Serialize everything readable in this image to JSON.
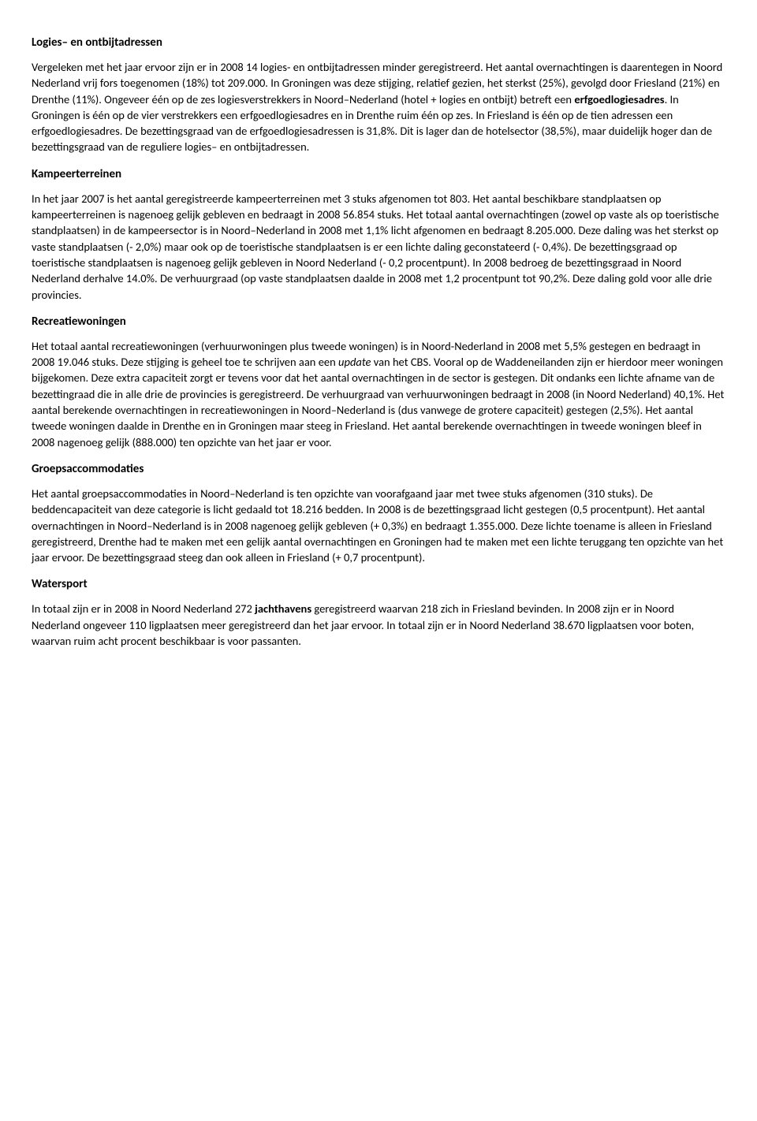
{
  "sections": {
    "logies": {
      "heading": "Logies– en ontbijtadressen",
      "body_html": "Vergeleken met het jaar ervoor zijn er in 2008 14 logies- en ontbijtadressen minder geregistreerd. Het aantal overnachtingen is daarentegen in Noord Nederland vrij fors toegenomen (18%) tot 209.000. In Groningen was deze stijging, relatief gezien, het sterkst (25%), gevolgd door Friesland (21%) en Drenthe (11%). Ongeveer één op de zes logiesverstrekkers in Noord–Nederland (hotel + logies en ontbijt) betreft een <strong>erfgoedlogiesadres</strong>. In Groningen is één op de vier verstrekkers een erfgoedlogiesadres en in Drenthe ruim één op zes. In Friesland is één op de tien adressen een erfgoedlogiesadres. De bezettingsgraad van de erfgoedlogiesadressen is 31,8%. Dit is lager dan de hotelsector (38,5%), maar duidelijk hoger dan de bezettingsgraad van de reguliere logies– en ontbijtadressen."
    },
    "kampeer": {
      "heading": "Kampeerterreinen",
      "body_html": "In het jaar 2007 is het aantal geregistreerde kampeerterreinen met 3 stuks afgenomen tot 803. Het aantal beschikbare standplaatsen op kampeerterreinen is nagenoeg gelijk gebleven en bedraagt in 2008 56.854 stuks. Het totaal aantal overnachtingen (zowel op vaste als op toeristische standplaatsen) in de kampeersector is in Noord–Nederland in 2008 met 1,1% licht afgenomen en bedraagt 8.205.000. Deze daling was het sterkst op vaste standplaatsen (- 2,0%) maar ook op de toeristische standplaatsen is er een lichte daling geconstateerd (- 0,4%). De bezettingsgraad op toeristische standplaatsen is nagenoeg gelijk gebleven in Noord Nederland (- 0,2 procentpunt). In 2008 bedroeg de bezettingsgraad in Noord Nederland derhalve 14.0%. De verhuurgraad (op vaste standplaatsen daalde in 2008 met 1,2 procentpunt tot 90,2%. Deze daling gold voor alle drie provincies."
    },
    "recreatie": {
      "heading": "Recreatiewoningen",
      "body_html": "Het totaal aantal recreatiewoningen (verhuurwoningen plus tweede woningen) is in Noord-Nederland in 2008 met 5,5% gestegen en bedraagt in 2008 19.046 stuks. Deze stijging is geheel toe te schrijven aan een <em>update</em> van het CBS. Vooral op de Waddeneilanden zijn er hierdoor meer woningen bijgekomen. Deze extra capaciteit zorgt er tevens voor dat het aantal overnachtingen in de sector is gestegen. Dit ondanks een lichte afname van de bezettingraad die in alle drie de provincies is geregistreerd. De verhuurgraad van verhuurwoningen bedraagt in 2008 (in Noord Nederland) 40,1%. Het aantal berekende overnachtingen in recreatiewoningen in Noord–Nederland is (dus vanwege de grotere capaciteit) gestegen (2,5%). Het aantal tweede woningen daalde in Drenthe en in Groningen maar steeg in Friesland. Het aantal berekende overnachtingen in tweede woningen bleef in 2008 nagenoeg gelijk (888.000) ten opzichte van het jaar er voor."
    },
    "groeps": {
      "heading": "Groepsaccommodaties",
      "body_html": "Het aantal groepsaccommodaties in Noord–Nederland is ten opzichte van voorafgaand jaar met twee stuks afgenomen (310 stuks). De beddencapaciteit van deze categorie is licht gedaald tot 18.216 bedden. In 2008 is de bezettingsgraad licht gestegen (0,5 procentpunt). Het aantal overnachtingen in Noord–Nederland is in 2008 nagenoeg gelijk gebleven (+ 0,3%) en bedraagt 1.355.000. Deze lichte toename is alleen in Friesland geregistreerd, Drenthe had te maken met een gelijk aantal overnachtingen en Groningen had te maken met een lichte teruggang ten opzichte van het jaar ervoor. De bezettingsgraad steeg dan ook alleen in Friesland (+ 0,7 procentpunt)."
    },
    "watersport": {
      "heading": "Watersport",
      "body_html": "In totaal zijn er in 2008 in Noord Nederland 272 <strong>jachthavens</strong> geregistreerd waarvan 218 zich in Friesland bevinden. In 2008 zijn er in Noord Nederland ongeveer 110 ligplaatsen meer geregistreerd dan het jaar ervoor. In totaal zijn er in Noord Nederland 38.670 ligplaatsen voor boten, waarvan ruim acht procent beschikbaar is voor passanten."
    }
  }
}
